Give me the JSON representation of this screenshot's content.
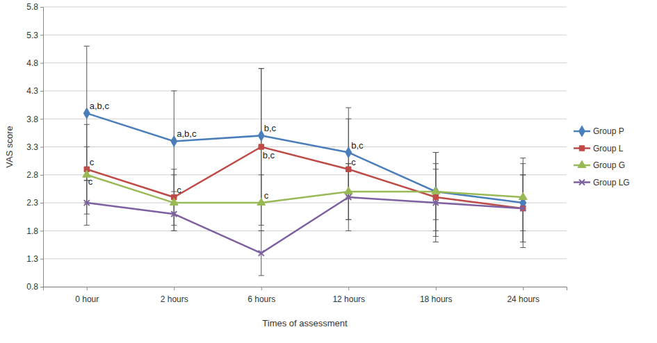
{
  "chart_data": {
    "type": "line",
    "x_label": "Times of assessment",
    "y_label": "VAS score",
    "categories": [
      "0 hour",
      "2 hours",
      "6 hours",
      "12 hours",
      "18 hours",
      "24 hours"
    ],
    "ylim": [
      0.8,
      5.8
    ],
    "yticks": [
      0.8,
      1.3,
      1.8,
      2.3,
      2.8,
      3.3,
      3.8,
      4.3,
      4.8,
      5.3,
      5.8
    ],
    "grid": true,
    "legend": "right",
    "series": [
      {
        "name": "Group P",
        "color": "#4a7ebb",
        "marker": "diamond",
        "values": [
          3.9,
          3.4,
          3.5,
          3.2,
          2.5,
          2.3
        ],
        "errors": [
          1.2,
          0.9,
          1.2,
          0.8,
          0.7,
          0.8
        ],
        "annotations": [
          "a,b,c",
          "a,b,c",
          "b,c",
          "b,c",
          null,
          null
        ]
      },
      {
        "name": "Group L",
        "color": "#be4b48",
        "marker": "square",
        "values": [
          2.9,
          2.4,
          3.3,
          2.9,
          2.4,
          2.2
        ],
        "errors": [
          0.8,
          0.5,
          1.4,
          0.9,
          0.8,
          0.6
        ],
        "annotations": [
          "c",
          "c",
          "b,c",
          "c",
          null,
          null
        ]
      },
      {
        "name": "Group G",
        "color": "#98b954",
        "marker": "triangle",
        "values": [
          2.8,
          2.3,
          2.3,
          2.5,
          2.5,
          2.4
        ],
        "errors": [
          0.5,
          0.5,
          0.5,
          0.5,
          0.5,
          0.6
        ],
        "annotations": [
          "c",
          null,
          "c",
          null,
          null,
          null
        ]
      },
      {
        "name": "Group LG",
        "color": "#7d60a0",
        "marker": "x",
        "values": [
          2.3,
          2.1,
          1.4,
          2.4,
          2.3,
          2.2
        ],
        "errors": [
          0.4,
          0.3,
          0.4,
          0.6,
          0.6,
          0.6
        ],
        "annotations": [
          null,
          null,
          null,
          null,
          null,
          null
        ]
      }
    ]
  }
}
